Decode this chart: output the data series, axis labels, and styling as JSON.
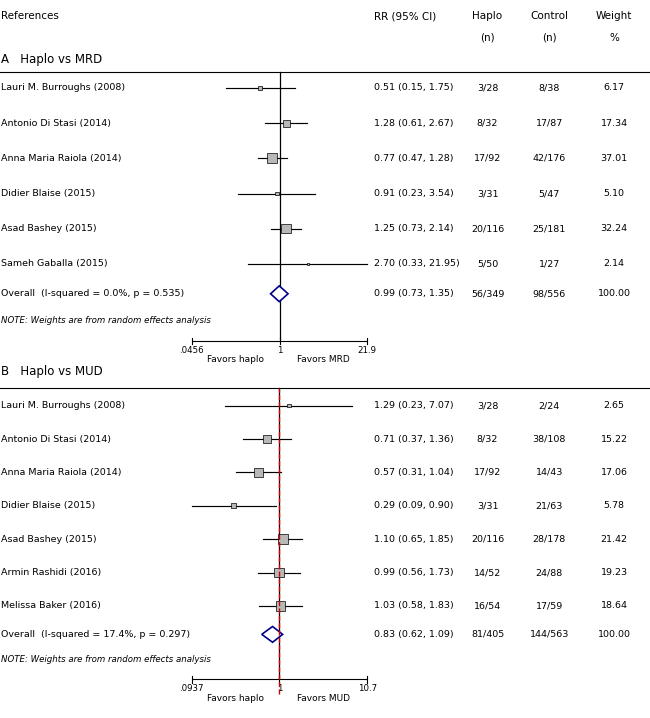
{
  "panel_A": {
    "title": "A   Haplo vs MRD",
    "studies": [
      {
        "label": "Lauri M. Burroughs (2008)",
        "rr": 0.51,
        "ci_low": 0.15,
        "ci_high": 1.75,
        "haplo": "3/28",
        "control": "8/38",
        "weight": 6.17
      },
      {
        "label": "Antonio Di Stasi (2014)",
        "rr": 1.28,
        "ci_low": 0.61,
        "ci_high": 2.67,
        "haplo": "8/32",
        "control": "17/87",
        "weight": 17.34
      },
      {
        "label": "Anna Maria Raiola (2014)",
        "rr": 0.77,
        "ci_low": 0.47,
        "ci_high": 1.28,
        "haplo": "17/92",
        "control": "42/176",
        "weight": 37.01
      },
      {
        "label": "Didier Blaise (2015)",
        "rr": 0.91,
        "ci_low": 0.23,
        "ci_high": 3.54,
        "haplo": "3/31",
        "control": "5/47",
        "weight": 5.1
      },
      {
        "label": "Asad Bashey (2015)",
        "rr": 1.25,
        "ci_low": 0.73,
        "ci_high": 2.14,
        "haplo": "20/116",
        "control": "25/181",
        "weight": 32.24
      },
      {
        "label": "Sameh Gaballa (2015)",
        "rr": 2.7,
        "ci_low": 0.33,
        "ci_high": 21.95,
        "haplo": "5/50",
        "control": "1/27",
        "weight": 2.14
      }
    ],
    "overall": {
      "label": "Overall  (I-squared = 0.0%, p = 0.535)",
      "rr": 0.99,
      "ci_low": 0.73,
      "ci_high": 1.35,
      "haplo": "56/349",
      "control": "98/556",
      "weight": 100.0
    },
    "xmin": 0.0456,
    "xmax": 21.9,
    "xtick_left_label": ".0456",
    "xtick_right_label": "21.9",
    "xlabel_left": "Favors haplo",
    "xlabel_right": "Favors MRD",
    "note": "NOTE: Weights are from random effects analysis",
    "dashed_line": false
  },
  "panel_B": {
    "title": "B   Haplo vs MUD",
    "studies": [
      {
        "label": "Lauri M. Burroughs (2008)",
        "rr": 1.29,
        "ci_low": 0.23,
        "ci_high": 7.07,
        "haplo": "3/28",
        "control": "2/24",
        "weight": 2.65
      },
      {
        "label": "Antonio Di Stasi (2014)",
        "rr": 0.71,
        "ci_low": 0.37,
        "ci_high": 1.36,
        "haplo": "8/32",
        "control": "38/108",
        "weight": 15.22
      },
      {
        "label": "Anna Maria Raiola (2014)",
        "rr": 0.57,
        "ci_low": 0.31,
        "ci_high": 1.04,
        "haplo": "17/92",
        "control": "14/43",
        "weight": 17.06
      },
      {
        "label": "Didier Blaise (2015)",
        "rr": 0.29,
        "ci_low": 0.09,
        "ci_high": 0.9,
        "haplo": "3/31",
        "control": "21/63",
        "weight": 5.78
      },
      {
        "label": "Asad Bashey (2015)",
        "rr": 1.1,
        "ci_low": 0.65,
        "ci_high": 1.85,
        "haplo": "20/116",
        "control": "28/178",
        "weight": 21.42
      },
      {
        "label": "Armin Rashidi (2016)",
        "rr": 0.99,
        "ci_low": 0.56,
        "ci_high": 1.73,
        "haplo": "14/52",
        "control": "24/88",
        "weight": 19.23
      },
      {
        "label": "Melissa Baker (2016)",
        "rr": 1.03,
        "ci_low": 0.58,
        "ci_high": 1.83,
        "haplo": "16/54",
        "control": "17/59",
        "weight": 18.64
      }
    ],
    "overall": {
      "label": "Overall  (I-squared = 17.4%, p = 0.297)",
      "rr": 0.83,
      "ci_low": 0.62,
      "ci_high": 1.09,
      "haplo": "81/405",
      "control": "144/563",
      "weight": 100.0
    },
    "xmin": 0.0937,
    "xmax": 10.7,
    "xtick_left_label": ".0937",
    "xtick_right_label": "10.7",
    "xlabel_left": "Favors haplo",
    "xlabel_right": "Favors MUD",
    "note": "NOTE: Weights are from random effects analysis",
    "dashed_line": true
  },
  "bg_color": "#ffffff",
  "diamond_color": "#00008b",
  "dashed_color": "#cc0000",
  "box_color": "#b8b8b8"
}
